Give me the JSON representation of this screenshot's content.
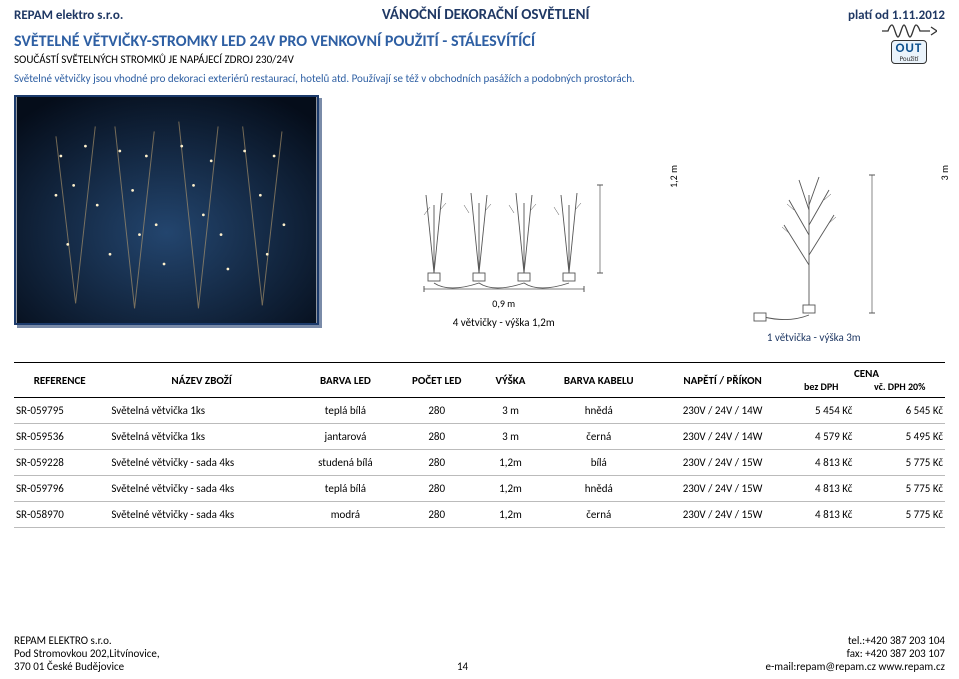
{
  "header": {
    "company": "REPAM elektro s.r.o.",
    "title": "VÁNOČNÍ DEKORAČNÍ OSVĚTLENÍ",
    "valid_from": "platí od 1.11.2012"
  },
  "section": {
    "title": "SVĚTELNÉ VĚTVIČKY-STROMKY LED 24V PRO VENKOVNÍ POUŽITÍ - STÁLESVÍTÍCÍ",
    "subtitle": "SOUČÁSTÍ SVĚTELNÝCH STROMKŮ JE NAPÁJECÍ ZDROJ 230/24V",
    "desc": "Světelné větvičky jsou vhodné pro dekoraci exteriérů restaurací, hotelů atd. Používají se též v obchodních pasážích a podobných prostorách."
  },
  "out_badge": {
    "big": "OUT",
    "small": "Použití"
  },
  "diagrams": {
    "left": {
      "dim_v": "1,2 m",
      "dim_h": "0,9 m",
      "caption": "4 větvičky - výška 1,2m"
    },
    "right": {
      "dim_v": "3 m",
      "caption": "1 větvička - výška 3m"
    }
  },
  "table": {
    "columns": {
      "ref": "REFERENCE",
      "name": "NÁZEV ZBOŽÍ",
      "led_color": "BARVA LED",
      "led_count": "POČET LED",
      "height": "VÝŠKA",
      "cable_color": "BARVA KABELU",
      "power": "NAPĚTÍ / PŘÍKON",
      "price": "CENA",
      "price_ex": "bez DPH",
      "price_inc": "vč. DPH 20%"
    },
    "rows": [
      {
        "ref": "SR-059795",
        "name": "Světelná větvička 1ks",
        "led_color": "teplá bílá",
        "led_count": "280",
        "height": "3 m",
        "cable_color": "hnědá",
        "power": "230V / 24V / 14W",
        "price_ex": "5 454 Kč",
        "price_inc": "6 545 Kč"
      },
      {
        "ref": "SR-059536",
        "name": "Světelná větvička 1ks",
        "led_color": "jantarová",
        "led_count": "280",
        "height": "3 m",
        "cable_color": "černá",
        "power": "230V / 24V / 14W",
        "price_ex": "4 579 Kč",
        "price_inc": "5 495 Kč"
      },
      {
        "ref": "SR-059228",
        "name": "Světelné větvičky - sada 4ks",
        "led_color": "studená bílá",
        "led_count": "280",
        "height": "1,2m",
        "cable_color": "bílá",
        "power": "230V / 24V / 15W",
        "price_ex": "4 813 Kč",
        "price_inc": "5 775 Kč"
      },
      {
        "ref": "SR-059796",
        "name": "Světelné větvičky - sada 4ks",
        "led_color": "teplá bílá",
        "led_count": "280",
        "height": "1,2m",
        "cable_color": "hnědá",
        "power": "230V / 24V / 15W",
        "price_ex": "4 813 Kč",
        "price_inc": "5 775 Kč"
      },
      {
        "ref": "SR-058970",
        "name": "Světelné větvičky - sada 4ks",
        "led_color": "modrá",
        "led_count": "280",
        "height": "1,2m",
        "cable_color": "černá",
        "power": "230V / 24V / 15W",
        "price_ex": "4 813 Kč",
        "price_inc": "5 775 Kč"
      }
    ]
  },
  "footer": {
    "left1": "REPAM ELEKTRO s.r.o.",
    "left2": "Pod Stromovkou 202,Litvínovice,",
    "left3": "370 01 České Budějovice",
    "page": "14",
    "right1": "tel.:+420 387 203 104",
    "right2": "fax: +420 387 203 107",
    "right3": "e-mail:repam@repam.cz   www.repam.cz"
  },
  "colors": {
    "accent": "#2e5fa3",
    "dark": "#1f3864",
    "photo_bg": "#0b1e3a",
    "line": "#555"
  }
}
